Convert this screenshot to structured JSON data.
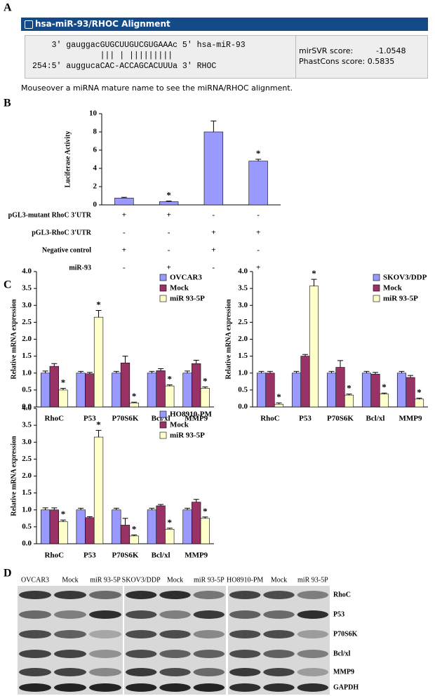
{
  "panels": [
    "A",
    "B",
    "C",
    "D"
  ],
  "alignment": {
    "title": "hsa-miR-93/RHOC Alignment",
    "lines": [
      "    3' gauggacGUGCUUGUCGUGAAAc 5' hsa-miR-93",
      "              ||| | |||||||||",
      "254:5' auggucaCAC-ACCAGCACUUUa 3' RHOC"
    ],
    "scores": [
      {
        "label": "mirSVR score:",
        "value": "-1.0548"
      },
      {
        "label": "PhastCons score:",
        "value": "0.5835"
      }
    ],
    "footer": "Mouseover a miRNA mature name to see the miRNA/RHOC alignment."
  },
  "chart_data": [
    {
      "type": "bar",
      "ylabel": "Luciferase Activity",
      "categories": [
        null,
        null,
        null,
        null
      ],
      "values": [
        0.75,
        0.35,
        8.0,
        4.8
      ],
      "errors": [
        0.08,
        0.07,
        1.2,
        0.2
      ],
      "color": "#9999ff",
      "annotations": [
        null,
        "*",
        null,
        "*"
      ],
      "ylim": [
        0,
        10
      ],
      "yticks": [
        0,
        2,
        4,
        6,
        8,
        10
      ],
      "conditions": [
        {
          "label": "pGL3-mutant RhoC 3'UTR",
          "signs": [
            "+",
            "+",
            "-",
            "-"
          ]
        },
        {
          "label": "pGL3-RhoC 3'UTR",
          "signs": [
            "-",
            "-",
            "+",
            "+"
          ]
        },
        {
          "label": "Negative control",
          "signs": [
            "+",
            "-",
            "+",
            "-"
          ]
        },
        {
          "label": "miR-93",
          "signs": [
            "-",
            "+",
            "-",
            "+"
          ]
        }
      ]
    },
    {
      "type": "bar",
      "ylabel": "Relative mRNA expression",
      "categories": [
        "RhoC",
        "P53",
        "P70S6K",
        "Bcl/xl",
        "MMP9"
      ],
      "ylim": [
        0,
        4
      ],
      "yticks": [
        {
          "value": 0,
          "label": "0.0"
        },
        0.5,
        {
          "value": 1,
          "label": "1.0"
        },
        1.5,
        {
          "value": 2,
          "label": "2.0"
        },
        2.5,
        {
          "value": 3,
          "label": "3.0"
        },
        3.5,
        {
          "value": 4,
          "label": "4.0"
        }
      ],
      "series": [
        {
          "name": "OVCAR3",
          "color": "#9999ff",
          "values": [
            1.0,
            1.0,
            1.0,
            1.0,
            1.0
          ],
          "errors": [
            0.06,
            0.05,
            0.05,
            0.05,
            0.06
          ]
        },
        {
          "name": "Mock",
          "color": "#993366",
          "values": [
            1.2,
            0.98,
            1.3,
            1.07,
            1.28
          ],
          "errors": [
            0.08,
            0.04,
            0.2,
            0.06,
            0.1
          ]
        },
        {
          "name": "miR 93-5P",
          "color": "#ffffcc",
          "values": [
            0.5,
            2.65,
            0.12,
            0.62,
            0.55
          ],
          "errors": [
            0.05,
            0.2,
            0.02,
            0.03,
            0.04
          ],
          "annotations": [
            "*",
            "*",
            "*",
            "*",
            "*"
          ]
        }
      ]
    },
    {
      "type": "bar",
      "ylabel": "Relative mRNA expression",
      "categories": [
        "RhoC",
        "P53",
        "P70S6K",
        "Bcl/xl",
        "MMP9"
      ],
      "ylim": [
        0,
        4
      ],
      "yticks": [
        {
          "value": 0,
          "label": "0.0"
        },
        0.5,
        {
          "value": 1,
          "label": "1.0"
        },
        1.5,
        {
          "value": 2,
          "label": "2.0"
        },
        2.5,
        {
          "value": 3,
          "label": "3.0"
        },
        3.5,
        {
          "value": 4,
          "label": "4.0"
        }
      ],
      "series": [
        {
          "name": "SKOV3/DDP",
          "color": "#9999ff",
          "values": [
            1.0,
            1.0,
            1.0,
            1.0,
            1.0
          ],
          "errors": [
            0.05,
            0.05,
            0.05,
            0.05,
            0.05
          ]
        },
        {
          "name": "Mock",
          "color": "#993366",
          "values": [
            1.0,
            1.5,
            1.17,
            0.97,
            0.87
          ],
          "errors": [
            0.05,
            0.05,
            0.2,
            0.05,
            0.06
          ]
        },
        {
          "name": "miR 93-5P",
          "color": "#ffffcc",
          "values": [
            0.08,
            3.57,
            0.35,
            0.38,
            0.23
          ],
          "errors": [
            0.04,
            0.2,
            0.03,
            0.03,
            0.03
          ],
          "annotations": [
            "*",
            "*",
            "*",
            "*",
            "*"
          ]
        }
      ]
    },
    {
      "type": "bar",
      "ylabel": "Relative mRNA expression",
      "categories": [
        "RhoC",
        "P53",
        "P70S6K",
        "Bcl/xl",
        "MMP9"
      ],
      "ylim": [
        0,
        4
      ],
      "yticks": [
        {
          "value": 0,
          "label": "0.0"
        },
        0.5,
        {
          "value": 1,
          "label": "1.0"
        },
        1.5,
        {
          "value": 2,
          "label": "2.0"
        },
        2.5,
        {
          "value": 3,
          "label": "3.0"
        },
        3.5,
        {
          "value": 4,
          "label": "4.0"
        }
      ],
      "series": [
        {
          "name": "HO8910-PM",
          "color": "#9999ff",
          "values": [
            1.0,
            1.0,
            1.0,
            1.0,
            1.0
          ],
          "errors": [
            0.06,
            0.05,
            0.05,
            0.05,
            0.05
          ]
        },
        {
          "name": "Mock",
          "color": "#993366",
          "values": [
            1.0,
            0.77,
            0.55,
            1.12,
            1.23
          ],
          "errors": [
            0.06,
            0.03,
            0.2,
            0.04,
            0.08
          ]
        },
        {
          "name": "miR 93-5P",
          "color": "#ffffcc",
          "values": [
            0.65,
            3.15,
            0.23,
            0.43,
            0.75
          ],
          "errors": [
            0.05,
            0.2,
            0.03,
            0.03,
            0.04
          ],
          "annotations": [
            "*",
            "*",
            "*",
            "*",
            "*"
          ]
        }
      ]
    }
  ],
  "blot": {
    "columns": [
      "OVCAR3",
      "Mock",
      "miR 93-5P",
      "SKOV3/DDP",
      "Mock",
      "miR 93-5P",
      "HO8910-PM",
      "Mock",
      "miR 93-5P"
    ],
    "rows": [
      "RhoC",
      "P53",
      "P70S6K",
      "Bcl/xl",
      "MMP9",
      "GAPDH"
    ]
  }
}
